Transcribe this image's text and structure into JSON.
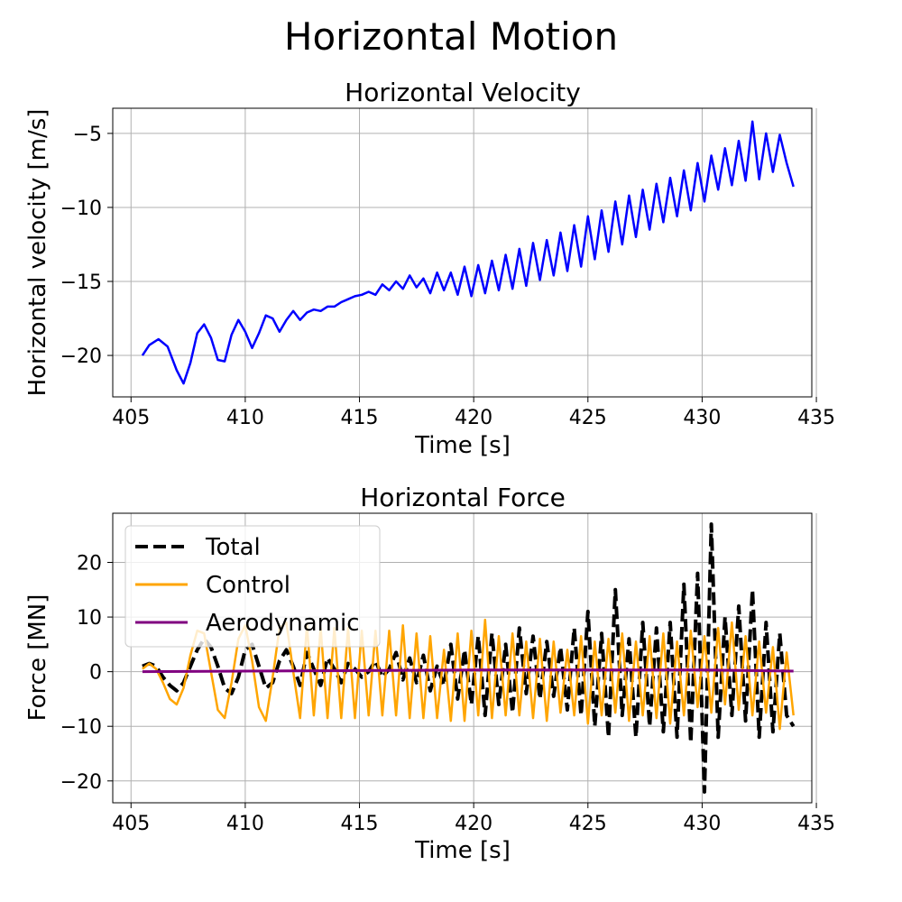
{
  "figure": {
    "suptitle": "Horizontal Motion"
  },
  "chart_data": [
    {
      "type": "line",
      "title": "Horizontal Velocity",
      "xlabel": "Time [s]",
      "ylabel": "Horizontal velocity [m/s]",
      "xlim": [
        404.2,
        434.8
      ],
      "ylim": [
        -22.8,
        -3.3
      ],
      "xticks": [
        405,
        410,
        415,
        420,
        425,
        430,
        435
      ],
      "yticks": [
        -20,
        -15,
        -10,
        -5
      ],
      "grid": true,
      "series": [
        {
          "color": "#0000ff",
          "style": "solid",
          "x": [
            405.5,
            405.8,
            406.2,
            406.6,
            407.0,
            407.3,
            407.6,
            407.9,
            408.2,
            408.5,
            408.8,
            409.1,
            409.4,
            409.7,
            410.0,
            410.3,
            410.6,
            410.9,
            411.2,
            411.5,
            411.8,
            412.1,
            412.4,
            412.7,
            413.0,
            413.3,
            413.6,
            413.9,
            414.2,
            414.5,
            414.8,
            415.1,
            415.4,
            415.7,
            416.0,
            416.3,
            416.6,
            416.9,
            417.2,
            417.5,
            417.8,
            418.1,
            418.4,
            418.7,
            419.0,
            419.3,
            419.6,
            419.9,
            420.2,
            420.5,
            420.8,
            421.1,
            421.4,
            421.7,
            422.0,
            422.3,
            422.6,
            422.9,
            423.2,
            423.5,
            423.8,
            424.1,
            424.4,
            424.7,
            425.0,
            425.3,
            425.6,
            425.9,
            426.2,
            426.5,
            426.8,
            427.1,
            427.4,
            427.7,
            428.0,
            428.3,
            428.6,
            428.9,
            429.2,
            429.5,
            429.8,
            430.1,
            430.4,
            430.7,
            431.0,
            431.3,
            431.6,
            431.9,
            432.2,
            432.5,
            432.8,
            433.1,
            433.4,
            433.7,
            434.0
          ],
          "y": [
            -20.0,
            -19.3,
            -18.9,
            -19.4,
            -21.0,
            -21.9,
            -20.5,
            -18.5,
            -17.9,
            -18.8,
            -20.3,
            -20.4,
            -18.6,
            -17.6,
            -18.4,
            -19.5,
            -18.5,
            -17.3,
            -17.5,
            -18.4,
            -17.6,
            -17.0,
            -17.6,
            -17.1,
            -16.9,
            -17.0,
            -16.7,
            -16.7,
            -16.4,
            -16.2,
            -16.0,
            -15.9,
            -15.7,
            -15.9,
            -15.2,
            -15.6,
            -15.0,
            -15.5,
            -14.6,
            -15.4,
            -14.8,
            -15.8,
            -14.4,
            -15.6,
            -14.4,
            -15.9,
            -14.0,
            -16.0,
            -13.9,
            -15.8,
            -13.6,
            -15.6,
            -13.2,
            -15.5,
            -12.8,
            -15.3,
            -12.4,
            -14.9,
            -12.2,
            -14.6,
            -11.7,
            -14.3,
            -11.2,
            -14.0,
            -10.6,
            -13.5,
            -10.2,
            -13.0,
            -9.6,
            -12.5,
            -9.2,
            -12.0,
            -8.8,
            -11.5,
            -8.4,
            -11.0,
            -8.0,
            -10.6,
            -7.5,
            -10.2,
            -7.0,
            -9.6,
            -6.5,
            -8.8,
            -6.0,
            -8.5,
            -5.5,
            -8.2,
            -4.2,
            -8.1,
            -5.0,
            -7.6,
            -5.1,
            -7.0,
            -8.6
          ]
        }
      ]
    },
    {
      "type": "line",
      "title": "Horizontal Force",
      "xlabel": "Time [s]",
      "ylabel": "Force [MN]",
      "xlim": [
        404.2,
        434.8
      ],
      "ylim": [
        -24,
        29
      ],
      "xticks": [
        405,
        410,
        415,
        420,
        425,
        430,
        435
      ],
      "yticks": [
        -20,
        -10,
        0,
        10,
        20
      ],
      "grid": true,
      "legend": "top-left",
      "series": [
        {
          "name": "Total",
          "color": "#000000",
          "style": "dashed",
          "x": [
            405.5,
            405.8,
            406.1,
            406.4,
            406.7,
            407.0,
            407.3,
            407.6,
            407.9,
            408.2,
            408.5,
            408.8,
            409.1,
            409.4,
            409.7,
            410.0,
            410.3,
            410.6,
            410.9,
            411.2,
            411.5,
            411.8,
            412.1,
            412.4,
            412.7,
            413.0,
            413.3,
            413.6,
            413.9,
            414.2,
            414.5,
            414.8,
            415.1,
            415.4,
            415.7,
            416.0,
            416.3,
            416.6,
            416.9,
            417.2,
            417.5,
            417.8,
            418.1,
            418.4,
            418.7,
            419.0,
            419.3,
            419.6,
            419.9,
            420.2,
            420.5,
            420.8,
            421.1,
            421.4,
            421.7,
            422.0,
            422.3,
            422.6,
            422.9,
            423.2,
            423.5,
            423.8,
            424.1,
            424.4,
            424.7,
            425.0,
            425.3,
            425.6,
            425.9,
            426.2,
            426.5,
            426.8,
            427.1,
            427.4,
            427.7,
            428.0,
            428.3,
            428.6,
            428.9,
            429.2,
            429.5,
            429.8,
            430.1,
            430.4,
            430.7,
            431.0,
            431.3,
            431.6,
            431.9,
            432.2,
            432.5,
            432.8,
            433.1,
            433.4,
            433.7,
            434.0
          ],
          "y": [
            1.0,
            1.5,
            1.0,
            -1.0,
            -2.5,
            -3.5,
            -2.0,
            1.0,
            4.0,
            6.0,
            4.5,
            1.0,
            -3.0,
            -4.0,
            -1.0,
            4.0,
            5.0,
            1.0,
            -3.0,
            -2.0,
            2.0,
            4.0,
            1.0,
            -2.5,
            3.5,
            0.5,
            -2.5,
            2.5,
            0.5,
            -2.0,
            1.5,
            0.5,
            -1.0,
            0.0,
            2.0,
            -1.0,
            0.5,
            3.5,
            -1.5,
            2.5,
            -2.0,
            3.0,
            -3.5,
            1.0,
            -2.5,
            5.0,
            -5.0,
            4.0,
            -6.0,
            6.5,
            -8.0,
            7.0,
            -6.0,
            5.0,
            -7.5,
            8.0,
            -4.0,
            6.5,
            -5.0,
            5.5,
            -4.5,
            4.5,
            -7.0,
            8.0,
            -8.0,
            11.0,
            -10.0,
            7.0,
            -12.0,
            15.0,
            -8.0,
            6.0,
            -12.0,
            9.0,
            -10.0,
            8.0,
            -11.0,
            9.0,
            -12.0,
            16.0,
            -13.0,
            18.0,
            -22.0,
            27.0,
            -12.0,
            10.0,
            -8.0,
            12.0,
            -9.0,
            15.0,
            -12.0,
            9.0,
            -11.0,
            7.0,
            -8.0,
            -10.0
          ]
        },
        {
          "name": "Control",
          "color": "#ffa500",
          "style": "solid",
          "x": [
            405.5,
            405.8,
            406.1,
            406.4,
            406.7,
            407.0,
            407.3,
            407.6,
            407.9,
            408.2,
            408.5,
            408.8,
            409.1,
            409.4,
            409.7,
            410.0,
            410.3,
            410.6,
            410.9,
            411.2,
            411.5,
            411.8,
            412.1,
            412.4,
            412.7,
            413.0,
            413.3,
            413.6,
            413.9,
            414.2,
            414.5,
            414.8,
            415.1,
            415.4,
            415.7,
            416.0,
            416.3,
            416.6,
            416.9,
            417.2,
            417.5,
            417.8,
            418.1,
            418.4,
            418.7,
            419.0,
            419.3,
            419.6,
            419.9,
            420.2,
            420.5,
            420.8,
            421.1,
            421.4,
            421.7,
            422.0,
            422.3,
            422.6,
            422.9,
            423.2,
            423.5,
            423.8,
            424.1,
            424.4,
            424.7,
            425.0,
            425.3,
            425.6,
            425.9,
            426.2,
            426.5,
            426.8,
            427.1,
            427.4,
            427.7,
            428.0,
            428.3,
            428.6,
            428.9,
            429.2,
            429.5,
            429.8,
            430.1,
            430.4,
            430.7,
            431.0,
            431.3,
            431.6,
            431.9,
            432.2,
            432.5,
            432.8,
            433.1,
            433.4,
            433.7,
            434.0
          ],
          "y": [
            0.5,
            1.5,
            0.5,
            -2.0,
            -5.0,
            -6.0,
            -3.0,
            3.0,
            7.5,
            7.0,
            0.0,
            -7.0,
            -8.5,
            -2.0,
            6.0,
            8.5,
            2.0,
            -6.5,
            -9.0,
            -1.0,
            8.0,
            9.0,
            0.0,
            -8.5,
            8.5,
            -8.0,
            8.0,
            -8.5,
            8.0,
            -8.5,
            8.0,
            -8.5,
            7.5,
            -8.0,
            7.5,
            -8.0,
            7.5,
            -8.0,
            8.5,
            -8.5,
            7.0,
            -8.5,
            6.5,
            -8.5,
            4.0,
            -9.0,
            7.0,
            -9.0,
            7.5,
            -8.0,
            9.5,
            -8.5,
            6.5,
            -8.0,
            7.0,
            -8.0,
            5.5,
            -8.5,
            6.0,
            -9.0,
            5.5,
            -7.5,
            4.0,
            -8.0,
            6.5,
            -9.5,
            5.5,
            -8.0,
            6.0,
            -7.5,
            7.0,
            -9.0,
            5.5,
            -8.0,
            6.5,
            -8.5,
            7.0,
            -9.5,
            5.5,
            -8.0,
            7.5,
            -6.5,
            6.5,
            -7.5,
            8.0,
            -6.0,
            9.0,
            -7.0,
            6.5,
            -8.0,
            5.5,
            -7.5,
            4.5,
            -10.5,
            3.5,
            -8.0
          ]
        },
        {
          "name": "Aerodynamic",
          "color": "#800080",
          "style": "solid",
          "x": [
            405.5,
            410.0,
            415.0,
            420.0,
            425.0,
            430.0,
            434.0
          ],
          "y": [
            0.0,
            0.1,
            0.2,
            0.3,
            0.3,
            0.3,
            0.1
          ]
        }
      ]
    }
  ]
}
